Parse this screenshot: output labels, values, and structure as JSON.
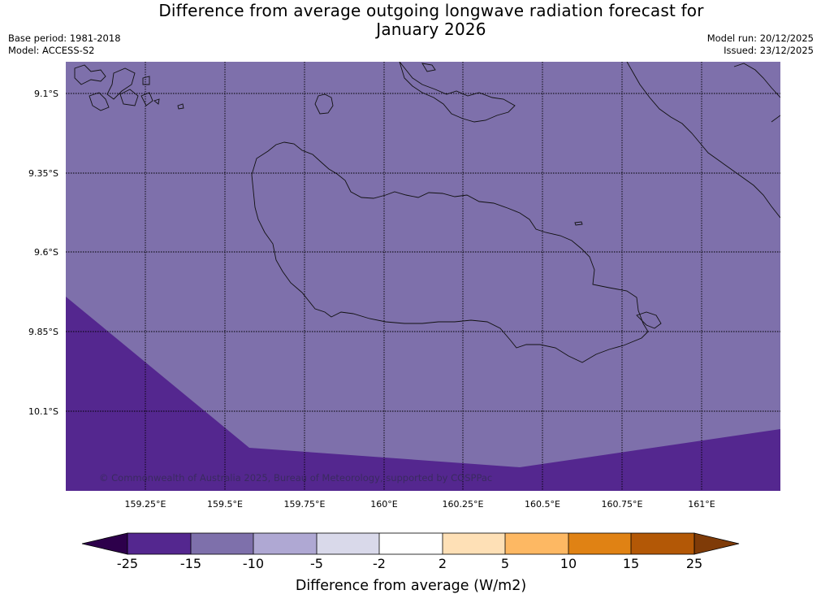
{
  "title": {
    "line1": "Difference from average outgoing longwave radiation forecast for",
    "line2": "January 2026"
  },
  "meta": {
    "base_period": "Base period: 1981-2018",
    "model": "Model: ACCESS-S2",
    "model_run": "Model run: 20/12/2025",
    "issued": "Issued: 23/12/2025"
  },
  "map": {
    "lat_labels": [
      "9.1°S",
      "9.35°S",
      "9.6°S",
      "9.85°S",
      "10.1°S"
    ],
    "lon_labels": [
      "159.25°E",
      "159.5°E",
      "159.75°E",
      "160°E",
      "160.25°E",
      "160.5°E",
      "160.75°E",
      "161°E"
    ],
    "copyright": "© Commonwealth of Australia 2025, Bureau of Meteorology, supported by COSPPac",
    "fill_colors": {
      "minus10_to_minus15": "#7e70ab",
      "minus15_to_minus25": "#54278f"
    }
  },
  "colorbar": {
    "title": "Difference from average (W/m2)",
    "labels": [
      "-25",
      "-15",
      "-10",
      "-5",
      "-2",
      "2",
      "5",
      "10",
      "15",
      "25"
    ],
    "colors": [
      "#54278f",
      "#7e70ab",
      "#afa8d3",
      "#d9d9ea",
      "#ffffff",
      "#fee0b6",
      "#fdb863",
      "#e08214",
      "#b35806"
    ],
    "under_color": "#2d004b",
    "over_color": "#7f3b08"
  }
}
